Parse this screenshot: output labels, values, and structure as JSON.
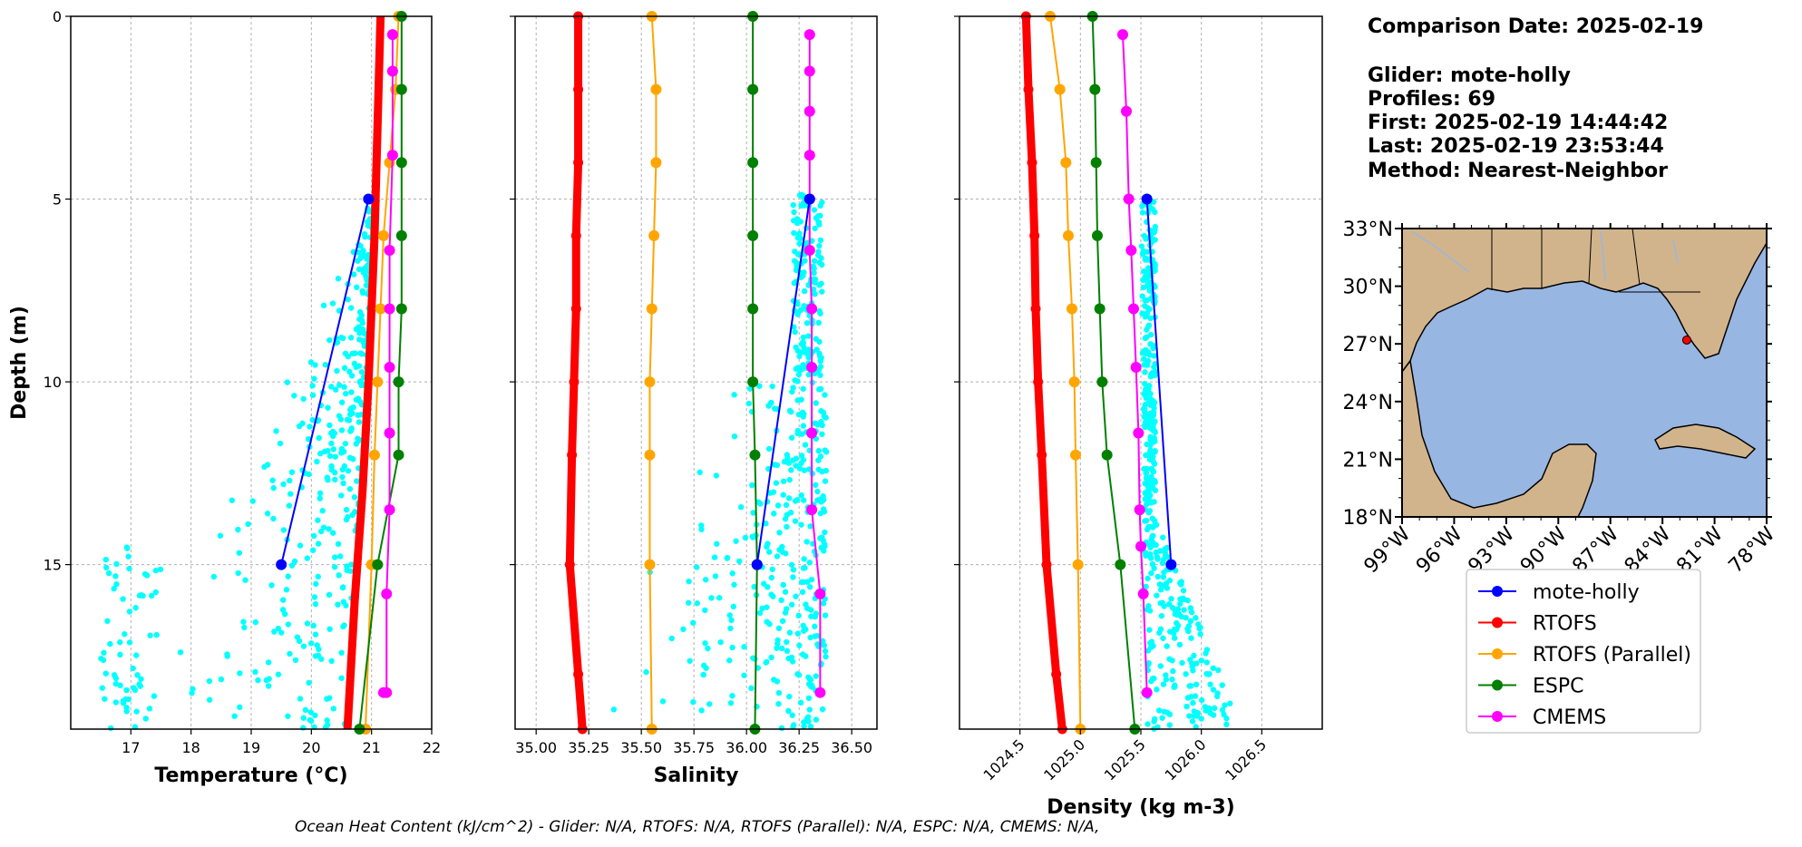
{
  "colors": {
    "glider": "#0000ff",
    "rtofs": "#ff0000",
    "rtofs_parallel": "#ffa500",
    "espc": "#008000",
    "cmems": "#ff00ff",
    "glider_scatter": "#00ffff",
    "ocean": "#98b6e2",
    "land": "#d2b48c",
    "grid": "#b0b0b0"
  },
  "info": {
    "line1": "Comparison Date: 2025-02-19",
    "line2": "Glider: mote-holly",
    "line3": "Profiles: 69",
    "line4": "First: 2025-02-19 14:44:42",
    "line5": "Last: 2025-02-19 23:53:44",
    "line6": "Method: Nearest-Neighbor"
  },
  "footnote": "Ocean Heat Content (kJ/cm^2) - Glider: N/A,  RTOFS: N/A,  RTOFS (Parallel): N/A,  ESPC: N/A,  CMEMS: N/A,",
  "chart_data": [
    {
      "type": "line",
      "id": "temperature",
      "xlabel": "Temperature (°C)",
      "ylabel": "Depth (m)",
      "xlim": [
        16.0,
        22.0
      ],
      "ylim": [
        19.5,
        0
      ],
      "xticks": [
        17,
        18,
        19,
        20,
        21,
        22
      ],
      "yticks": [
        0,
        5,
        10,
        15
      ],
      "grid": true,
      "series": [
        {
          "name": "RTOFS",
          "key": "rtofs",
          "width": 9,
          "marker": false,
          "x": [
            21.15,
            21.1,
            21.05,
            20.95,
            20.85,
            20.72,
            20.6
          ],
          "y": [
            0,
            3,
            6,
            10,
            13,
            16,
            19.5
          ]
        },
        {
          "name": "RTOFS (Parallel)",
          "key": "rtofs_parallel",
          "width": 2,
          "marker": true,
          "x": [
            21.45,
            21.4,
            21.3,
            21.2,
            21.15,
            21.1,
            21.05,
            21.0,
            20.9
          ],
          "y": [
            0,
            2,
            4,
            6,
            8,
            10,
            12,
            15,
            19.5
          ]
        },
        {
          "name": "ESPC",
          "key": "espc",
          "width": 2,
          "marker": true,
          "x": [
            21.5,
            21.5,
            21.5,
            21.5,
            21.5,
            21.45,
            21.45,
            21.1,
            20.8
          ],
          "y": [
            0,
            2,
            4,
            6,
            8,
            10,
            12,
            15,
            19.5
          ]
        },
        {
          "name": "CMEMS",
          "key": "cmems",
          "width": 2,
          "marker": true,
          "x": [
            21.35,
            21.35,
            21.35,
            21.3,
            21.3,
            21.3,
            21.3,
            21.3,
            21.25,
            21.25,
            21.2
          ],
          "y": [
            0.5,
            1.5,
            3.8,
            6.4,
            8,
            9.6,
            11.4,
            13.5,
            15.8,
            18.5,
            18.5
          ]
        },
        {
          "name": "mote-holly",
          "key": "glider",
          "width": 2,
          "marker": true,
          "x": [
            20.95,
            19.5
          ],
          "y": [
            5,
            15
          ]
        }
      ],
      "scatter": {
        "x_range": [
          16.5,
          21.2
        ],
        "y_range": [
          5,
          19.5
        ],
        "count": 420
      }
    },
    {
      "type": "line",
      "id": "salinity",
      "xlabel": "Salinity",
      "xlim": [
        34.9,
        36.62
      ],
      "ylim": [
        19.5,
        0
      ],
      "xticks": [
        35.0,
        35.25,
        35.5,
        35.75,
        36.0,
        36.25,
        36.5
      ],
      "xticklabels": [
        "35.00",
        "35.25",
        "35.50",
        "35.75",
        "36.00",
        "36.25",
        "36.50"
      ],
      "yticks": [
        0,
        5,
        10,
        15
      ],
      "grid": true,
      "series": [
        {
          "name": "RTOFS",
          "key": "rtofs",
          "width": 9,
          "marker": true,
          "x": [
            35.2,
            35.2,
            35.2,
            35.19,
            35.19,
            35.18,
            35.17,
            35.16,
            35.2,
            35.22
          ],
          "y": [
            0,
            2,
            4,
            6,
            8,
            10,
            12,
            15,
            18,
            19.5
          ]
        },
        {
          "name": "RTOFS (Parallel)",
          "key": "rtofs_parallel",
          "width": 2,
          "marker": true,
          "x": [
            35.55,
            35.57,
            35.57,
            35.56,
            35.55,
            35.54,
            35.54,
            35.54,
            35.55
          ],
          "y": [
            0,
            2,
            4,
            6,
            8,
            10,
            12,
            15,
            19.5
          ]
        },
        {
          "name": "ESPC",
          "key": "espc",
          "width": 2,
          "marker": true,
          "x": [
            36.03,
            36.03,
            36.03,
            36.03,
            36.03,
            36.03,
            36.04,
            36.05,
            36.04
          ],
          "y": [
            0,
            2,
            4,
            6,
            8,
            10,
            12,
            15,
            19.5
          ]
        },
        {
          "name": "CMEMS",
          "key": "cmems",
          "width": 2,
          "marker": true,
          "x": [
            36.3,
            36.3,
            36.3,
            36.3,
            36.3,
            36.3,
            36.31,
            36.31,
            36.31,
            36.31,
            36.35,
            36.35
          ],
          "y": [
            0.5,
            1.5,
            2.6,
            3.8,
            5,
            6.4,
            8,
            9.6,
            11.4,
            13.5,
            15.8,
            18.5
          ]
        },
        {
          "name": "mote-holly",
          "key": "glider",
          "width": 2,
          "marker": true,
          "x": [
            36.3,
            36.05
          ],
          "y": [
            5,
            15
          ]
        }
      ],
      "scatter": {
        "x_range": [
          35.15,
          36.38
        ],
        "y_range": [
          4.8,
          19.5
        ],
        "count": 460
      }
    },
    {
      "type": "line",
      "id": "density",
      "xlabel": "Density (kg m-3)",
      "xlim": [
        1024.0,
        1027.0
      ],
      "ylim": [
        19.5,
        0
      ],
      "xticks": [
        1024.5,
        1025.0,
        1025.5,
        1026.0,
        1026.5
      ],
      "xticklabels": [
        "1024.5",
        "1025.0",
        "1025.5",
        "1026.0",
        "1026.5"
      ],
      "yticks": [
        0,
        5,
        10,
        15
      ],
      "grid": true,
      "series": [
        {
          "name": "RTOFS",
          "key": "rtofs",
          "width": 9,
          "marker": true,
          "x": [
            1024.55,
            1024.57,
            1024.6,
            1024.62,
            1024.63,
            1024.65,
            1024.68,
            1024.72,
            1024.8,
            1024.85
          ],
          "y": [
            0,
            2,
            4,
            6,
            8,
            10,
            12,
            15,
            18,
            19.5
          ]
        },
        {
          "name": "RTOFS (Parallel)",
          "key": "rtofs_parallel",
          "width": 2,
          "marker": true,
          "x": [
            1024.75,
            1024.83,
            1024.88,
            1024.9,
            1024.93,
            1024.95,
            1024.96,
            1024.98,
            1025.0
          ],
          "y": [
            0,
            2,
            4,
            6,
            8,
            10,
            12,
            15,
            19.5
          ]
        },
        {
          "name": "ESPC",
          "key": "espc",
          "width": 2,
          "marker": true,
          "x": [
            1025.1,
            1025.12,
            1025.13,
            1025.14,
            1025.16,
            1025.18,
            1025.22,
            1025.33,
            1025.45
          ],
          "y": [
            0,
            2,
            4,
            6,
            8,
            10,
            12,
            15,
            19.5
          ]
        },
        {
          "name": "CMEMS",
          "key": "cmems",
          "width": 2,
          "marker": true,
          "x": [
            1025.35,
            1025.38,
            1025.4,
            1025.42,
            1025.44,
            1025.46,
            1025.48,
            1025.49,
            1025.5,
            1025.52,
            1025.55
          ],
          "y": [
            0.5,
            2.6,
            5.0,
            6.4,
            8.0,
            9.6,
            11.4,
            13.5,
            14.5,
            15.8,
            18.5
          ]
        },
        {
          "name": "mote-holly",
          "key": "glider",
          "width": 2,
          "marker": true,
          "x": [
            1025.55,
            1025.75
          ],
          "y": [
            5,
            15
          ]
        }
      ],
      "scatter": {
        "x_range": [
          1025.5,
          1026.4
        ],
        "y_range": [
          5,
          19.5
        ],
        "count": 430
      }
    },
    {
      "type": "map",
      "id": "location-map",
      "lon_range": [
        -99,
        -78
      ],
      "lat_range": [
        18,
        33
      ],
      "xticklabels": [
        "99°W",
        "96°W",
        "93°W",
        "90°W",
        "87°W",
        "84°W",
        "81°W",
        "78°W"
      ],
      "yticklabels": [
        "33°N",
        "30°N",
        "27°N",
        "24°N",
        "21°N",
        "18°N"
      ],
      "glider_position": {
        "lon": -82.6,
        "lat": 27.2
      }
    }
  ],
  "legend": {
    "items": [
      {
        "label": "mote-holly",
        "key": "glider"
      },
      {
        "label": "RTOFS",
        "key": "rtofs"
      },
      {
        "label": "RTOFS (Parallel)",
        "key": "rtofs_parallel"
      },
      {
        "label": "ESPC",
        "key": "espc"
      },
      {
        "label": "CMEMS",
        "key": "cmems"
      }
    ]
  }
}
